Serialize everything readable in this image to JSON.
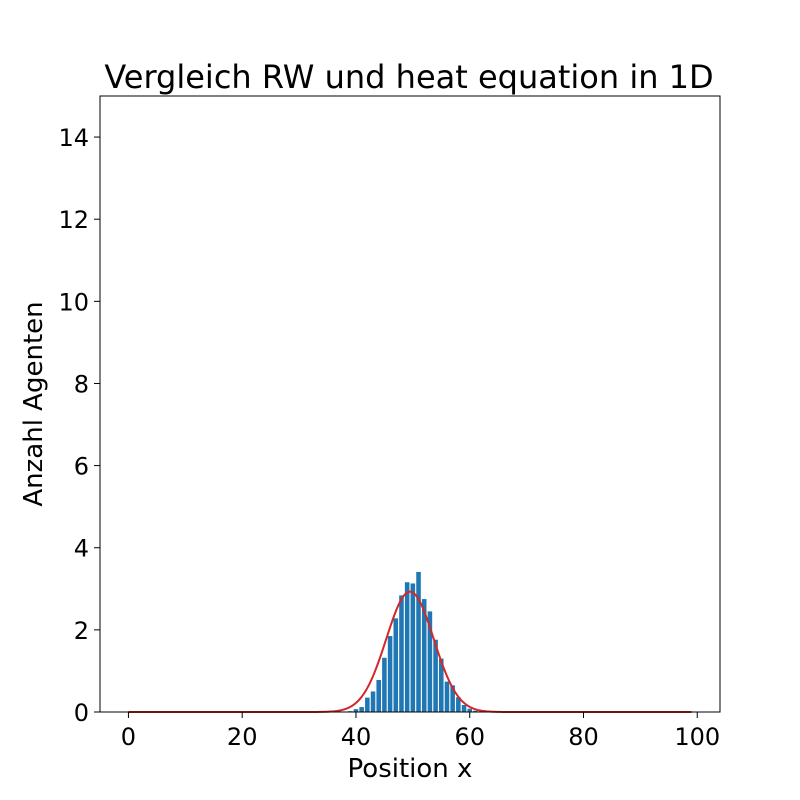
{
  "chart_data": {
    "type": "bar",
    "title": "Vergleich RW und heat equation in 1D",
    "xlabel": "Position x",
    "ylabel": "Anzahl Agenten",
    "xlim": [
      -5,
      104
    ],
    "ylim": [
      0,
      15
    ],
    "xticks": [
      0,
      20,
      40,
      60,
      80,
      100
    ],
    "yticks": [
      0,
      2,
      4,
      6,
      8,
      10,
      12,
      14
    ],
    "grid": false,
    "bar_color": "#1f77b4",
    "curve_color": "#d62728",
    "bars": {
      "x": [
        39,
        40,
        41,
        42,
        43,
        44,
        45,
        46,
        47,
        48,
        49,
        50,
        51,
        52,
        53,
        54,
        55,
        56,
        57,
        58,
        59,
        60,
        61
      ],
      "values": [
        0.02,
        0.07,
        0.12,
        0.35,
        0.5,
        0.78,
        1.32,
        1.85,
        2.28,
        2.84,
        3.16,
        3.13,
        3.41,
        2.75,
        2.45,
        1.76,
        1.3,
        0.74,
        0.65,
        0.36,
        0.17,
        0.08,
        0.03
      ]
    },
    "curve": {
      "mean": 49.5,
      "std": 4.18,
      "peak": 2.93,
      "x_range": [
        0,
        99
      ]
    }
  }
}
